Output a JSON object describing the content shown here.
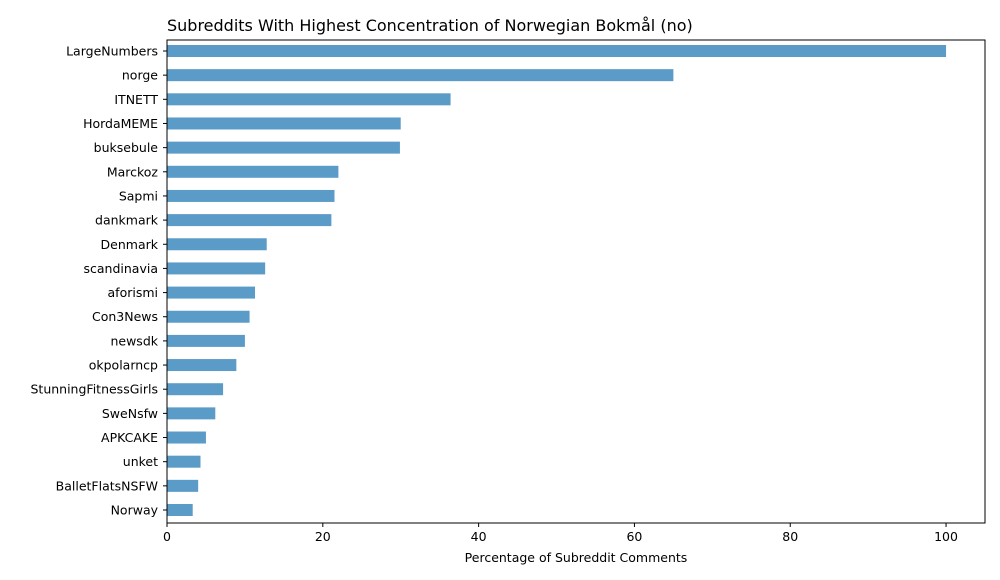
{
  "chart_data": {
    "type": "bar",
    "orientation": "horizontal",
    "title": "Subreddits With Highest Concentration of Norwegian Bokmål (no)",
    "xlabel": "Percentage of Subreddit Comments",
    "ylabel": "",
    "xlim": [
      0,
      105
    ],
    "xticks": [
      0,
      20,
      40,
      60,
      80,
      100
    ],
    "grid": false,
    "bar_color": "#5b9bc8",
    "categories": [
      "LargeNumbers",
      "norge",
      "ITNETT",
      "HordaMEME",
      "buksebule",
      "Marckoz",
      "Sapmi",
      "dankmark",
      "Denmark",
      "scandinavia",
      "aforismi",
      "Con3News",
      "newsdk",
      "okpolarncp",
      "StunningFitnessGirls",
      "SweNsfw",
      "APKCAKE",
      "unket",
      "BalletFlatsNSFW",
      "Norway"
    ],
    "values": [
      100,
      65.0,
      36.4,
      30.0,
      29.9,
      22.0,
      21.5,
      21.1,
      12.8,
      12.6,
      11.3,
      10.6,
      10.0,
      8.9,
      7.2,
      6.2,
      5.0,
      4.3,
      4.0,
      3.3
    ]
  }
}
